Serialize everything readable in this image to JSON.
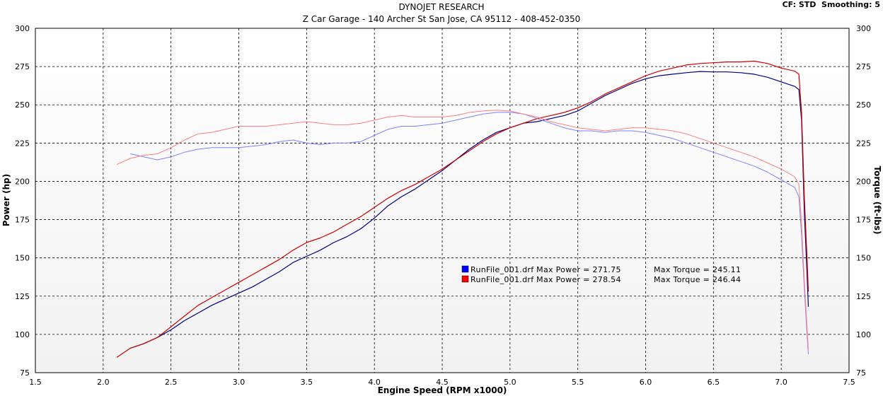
{
  "header": {
    "title": "DYNOJET RESEARCH",
    "subtitle": "Z Car Garage - 140 Archer St San Jose, CA 95112 - 408-452-0350",
    "cf_smoothing": "CF: STD  Smoothing: 5"
  },
  "chart_data": {
    "type": "line",
    "xlabel": "Engine Speed (RPM x1000)",
    "ylabel_left": "Power (hp)",
    "ylabel_right": "Torque (ft-lbs)",
    "xlim": [
      1.5,
      7.5
    ],
    "ylim_left": [
      75,
      300
    ],
    "ylim_right": [
      75,
      300
    ],
    "x_ticks": [
      "1.5",
      "2.0",
      "2.5",
      "3.0",
      "3.5",
      "4.0",
      "4.5",
      "5.0",
      "5.5",
      "6.0",
      "6.5",
      "7.0",
      "7.5"
    ],
    "y_ticks": [
      "75",
      "100",
      "125",
      "150",
      "175",
      "200",
      "225",
      "250",
      "275",
      "300"
    ],
    "grid": true,
    "legend": [
      {
        "file": "RunFile_001.drf",
        "color": "#0000ff",
        "text": "RunFile_001.drf Max Power = 271.75",
        "torque_text": "Max Torque = 245.11"
      },
      {
        "file": "RunFile_001.drf",
        "color": "#ff0000",
        "text": "RunFile_001.drf Max Power = 278.54",
        "torque_text": "Max Torque = 246.44"
      }
    ],
    "series": [
      {
        "kind": "power",
        "color": "#000080",
        "points": [
          [
            2.2,
            91
          ],
          [
            2.3,
            94
          ],
          [
            2.4,
            98
          ],
          [
            2.5,
            103
          ],
          [
            2.6,
            109
          ],
          [
            2.7,
            114
          ],
          [
            2.8,
            119
          ],
          [
            2.9,
            123
          ],
          [
            3.0,
            127
          ],
          [
            3.1,
            131
          ],
          [
            3.2,
            136
          ],
          [
            3.3,
            141
          ],
          [
            3.4,
            147
          ],
          [
            3.5,
            151
          ],
          [
            3.6,
            155
          ],
          [
            3.7,
            160
          ],
          [
            3.8,
            164
          ],
          [
            3.9,
            169
          ],
          [
            4.0,
            176
          ],
          [
            4.1,
            184
          ],
          [
            4.2,
            190
          ],
          [
            4.3,
            195
          ],
          [
            4.4,
            201
          ],
          [
            4.5,
            207
          ],
          [
            4.6,
            214
          ],
          [
            4.7,
            221
          ],
          [
            4.8,
            227
          ],
          [
            4.9,
            232
          ],
          [
            5.0,
            235
          ],
          [
            5.1,
            238
          ],
          [
            5.2,
            239
          ],
          [
            5.3,
            241
          ],
          [
            5.4,
            243
          ],
          [
            5.5,
            246
          ],
          [
            5.6,
            251
          ],
          [
            5.7,
            256
          ],
          [
            5.8,
            260
          ],
          [
            5.9,
            264
          ],
          [
            6.0,
            267
          ],
          [
            6.1,
            269
          ],
          [
            6.2,
            270
          ],
          [
            6.3,
            271
          ],
          [
            6.4,
            271.75
          ],
          [
            6.5,
            271.5
          ],
          [
            6.6,
            271.5
          ],
          [
            6.7,
            271
          ],
          [
            6.8,
            270
          ],
          [
            6.9,
            268
          ],
          [
            7.0,
            265
          ],
          [
            7.1,
            262
          ],
          [
            7.13,
            260
          ],
          [
            7.15,
            240
          ],
          [
            7.17,
            180
          ],
          [
            7.19,
            140
          ],
          [
            7.2,
            118
          ]
        ]
      },
      {
        "kind": "power",
        "color": "#cc0000",
        "points": [
          [
            2.1,
            85
          ],
          [
            2.2,
            91
          ],
          [
            2.3,
            94
          ],
          [
            2.4,
            98
          ],
          [
            2.5,
            105
          ],
          [
            2.6,
            112
          ],
          [
            2.7,
            119
          ],
          [
            2.8,
            124
          ],
          [
            2.9,
            129
          ],
          [
            3.0,
            134
          ],
          [
            3.1,
            139
          ],
          [
            3.2,
            144
          ],
          [
            3.3,
            149
          ],
          [
            3.4,
            155
          ],
          [
            3.5,
            160
          ],
          [
            3.6,
            163
          ],
          [
            3.7,
            167
          ],
          [
            3.8,
            172
          ],
          [
            3.9,
            177
          ],
          [
            4.0,
            183
          ],
          [
            4.1,
            189
          ],
          [
            4.2,
            194
          ],
          [
            4.3,
            198
          ],
          [
            4.4,
            203
          ],
          [
            4.5,
            208
          ],
          [
            4.6,
            214
          ],
          [
            4.7,
            220
          ],
          [
            4.8,
            226
          ],
          [
            4.9,
            231
          ],
          [
            5.0,
            235
          ],
          [
            5.1,
            238
          ],
          [
            5.2,
            241
          ],
          [
            5.3,
            243
          ],
          [
            5.4,
            245
          ],
          [
            5.5,
            248
          ],
          [
            5.6,
            252
          ],
          [
            5.7,
            257
          ],
          [
            5.8,
            261
          ],
          [
            5.9,
            265
          ],
          [
            6.0,
            269
          ],
          [
            6.1,
            272
          ],
          [
            6.2,
            274
          ],
          [
            6.3,
            276
          ],
          [
            6.4,
            277
          ],
          [
            6.5,
            277.5
          ],
          [
            6.6,
            278
          ],
          [
            6.7,
            278
          ],
          [
            6.8,
            278.54
          ],
          [
            6.9,
            277
          ],
          [
            7.0,
            274
          ],
          [
            7.1,
            272
          ],
          [
            7.13,
            270
          ],
          [
            7.15,
            245
          ],
          [
            7.17,
            190
          ],
          [
            7.19,
            150
          ],
          [
            7.2,
            128
          ]
        ]
      },
      {
        "kind": "torque",
        "color": "#8080ff",
        "points": [
          [
            2.2,
            218
          ],
          [
            2.3,
            216
          ],
          [
            2.4,
            214
          ],
          [
            2.5,
            216
          ],
          [
            2.6,
            219
          ],
          [
            2.7,
            221
          ],
          [
            2.8,
            222
          ],
          [
            2.9,
            222
          ],
          [
            3.0,
            222
          ],
          [
            3.1,
            223
          ],
          [
            3.2,
            224
          ],
          [
            3.3,
            226
          ],
          [
            3.4,
            227
          ],
          [
            3.5,
            225
          ],
          [
            3.6,
            224
          ],
          [
            3.7,
            225
          ],
          [
            3.8,
            225
          ],
          [
            3.9,
            226
          ],
          [
            4.0,
            230
          ],
          [
            4.1,
            234
          ],
          [
            4.2,
            236
          ],
          [
            4.3,
            236
          ],
          [
            4.4,
            237
          ],
          [
            4.5,
            238
          ],
          [
            4.6,
            240
          ],
          [
            4.7,
            242
          ],
          [
            4.8,
            244
          ],
          [
            4.9,
            245
          ],
          [
            5.0,
            245.11
          ],
          [
            5.1,
            244
          ],
          [
            5.2,
            241
          ],
          [
            5.3,
            238
          ],
          [
            5.4,
            235
          ],
          [
            5.5,
            233
          ],
          [
            5.6,
            233
          ],
          [
            5.7,
            232
          ],
          [
            5.8,
            233
          ],
          [
            5.9,
            233
          ],
          [
            6.0,
            232
          ],
          [
            6.1,
            230
          ],
          [
            6.2,
            228
          ],
          [
            6.3,
            225
          ],
          [
            6.4,
            222
          ],
          [
            6.5,
            219
          ],
          [
            6.6,
            216
          ],
          [
            6.7,
            213
          ],
          [
            6.8,
            210
          ],
          [
            6.9,
            206
          ],
          [
            7.0,
            201
          ],
          [
            7.1,
            196
          ],
          [
            7.13,
            190
          ],
          [
            7.15,
            165
          ],
          [
            7.17,
            130
          ],
          [
            7.19,
            100
          ],
          [
            7.2,
            87
          ]
        ]
      },
      {
        "kind": "torque",
        "color": "#ff8080",
        "points": [
          [
            2.1,
            211
          ],
          [
            2.2,
            215
          ],
          [
            2.3,
            217
          ],
          [
            2.4,
            218
          ],
          [
            2.5,
            222
          ],
          [
            2.6,
            227
          ],
          [
            2.7,
            231
          ],
          [
            2.8,
            232
          ],
          [
            2.9,
            234
          ],
          [
            3.0,
            236
          ],
          [
            3.1,
            236
          ],
          [
            3.2,
            236
          ],
          [
            3.3,
            237
          ],
          [
            3.4,
            238
          ],
          [
            3.5,
            239
          ],
          [
            3.6,
            238
          ],
          [
            3.7,
            237
          ],
          [
            3.8,
            237
          ],
          [
            3.9,
            238
          ],
          [
            4.0,
            240
          ],
          [
            4.1,
            242
          ],
          [
            4.2,
            243
          ],
          [
            4.3,
            242
          ],
          [
            4.4,
            242
          ],
          [
            4.5,
            242
          ],
          [
            4.6,
            243
          ],
          [
            4.7,
            245
          ],
          [
            4.8,
            246
          ],
          [
            4.9,
            246.44
          ],
          [
            5.0,
            246
          ],
          [
            5.1,
            244
          ],
          [
            5.2,
            242
          ],
          [
            5.3,
            239
          ],
          [
            5.4,
            237
          ],
          [
            5.5,
            235
          ],
          [
            5.6,
            234
          ],
          [
            5.7,
            233
          ],
          [
            5.8,
            234
          ],
          [
            5.9,
            235
          ],
          [
            6.0,
            235
          ],
          [
            6.1,
            234
          ],
          [
            6.2,
            233
          ],
          [
            6.3,
            231
          ],
          [
            6.4,
            228
          ],
          [
            6.5,
            225
          ],
          [
            6.6,
            222
          ],
          [
            6.7,
            219
          ],
          [
            6.8,
            216
          ],
          [
            6.9,
            212
          ],
          [
            7.0,
            208
          ],
          [
            7.1,
            203
          ],
          [
            7.13,
            198
          ],
          [
            7.15,
            172
          ],
          [
            7.17,
            135
          ],
          [
            7.19,
            105
          ],
          [
            7.2,
            90
          ]
        ]
      }
    ]
  }
}
